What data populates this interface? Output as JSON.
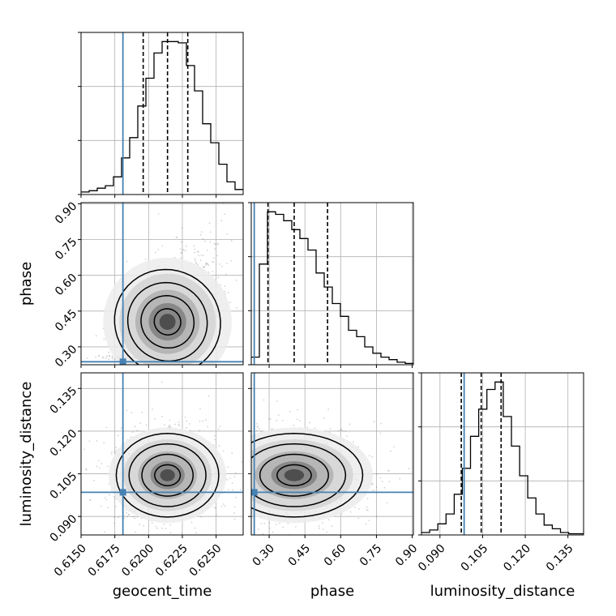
{
  "chart_data": {
    "type": "corner",
    "parameters": [
      "geocent_time",
      "phase",
      "luminosity_distance"
    ],
    "truth": {
      "geocent_time": 0.6181,
      "phase": 0.2375,
      "luminosity_distance": 0.0985
    },
    "quantiles": {
      "geocent_time": [
        0.6196,
        0.6214,
        0.6229
      ],
      "phase": [
        0.295,
        0.405,
        0.545
      ],
      "luminosity_distance": [
        0.0975,
        0.1045,
        0.1115
      ]
    },
    "ranges": {
      "geocent_time": [
        0.615,
        0.627
      ],
      "phase": [
        0.225,
        0.905
      ],
      "luminosity_distance": [
        0.0835,
        0.1405
      ]
    },
    "ticks": {
      "geocent_time": {
        "values": [
          0.615,
          0.6175,
          0.62,
          0.6225,
          0.625
        ],
        "labels": [
          "0.6150",
          "0.6175",
          "0.6200",
          "0.6225",
          "0.6250"
        ]
      },
      "phase": {
        "values": [
          0.3,
          0.45,
          0.6,
          0.75,
          0.9
        ],
        "labels": [
          "0.30",
          "0.45",
          "0.60",
          "0.75",
          "0.90"
        ]
      },
      "luminosity_distance": {
        "values": [
          0.09,
          0.105,
          0.12,
          0.135
        ],
        "labels": [
          "0.090",
          "0.105",
          "0.120",
          "0.135"
        ]
      }
    },
    "histograms": {
      "geocent_time": {
        "edges_start": 0.615,
        "bin_width": 0.0006,
        "counts": [
          2,
          3,
          5,
          7,
          14,
          29,
          45,
          70,
          92,
          112,
          121,
          121,
          120,
          102,
          82,
          56,
          41,
          24,
          10,
          4
        ]
      },
      "phase": {
        "edges_start": 0.225,
        "bin_width": 0.034,
        "counts": [
          6,
          79,
          120,
          118,
          113,
          106,
          99,
          90,
          72,
          61,
          48,
          38,
          27,
          22,
          14,
          9,
          6,
          4,
          2,
          1
        ]
      },
      "luminosity_distance": {
        "edges_start": 0.0835,
        "bin_width": 0.002875,
        "counts": [
          2,
          4,
          9,
          17,
          33,
          54,
          80,
          102,
          118,
          124,
          96,
          72,
          48,
          30,
          17,
          8,
          5,
          2,
          1,
          1
        ]
      }
    },
    "grid": true,
    "colors": {
      "truth": "#4682b4",
      "lines": "#000000",
      "samples": "#6e6e6e"
    }
  }
}
